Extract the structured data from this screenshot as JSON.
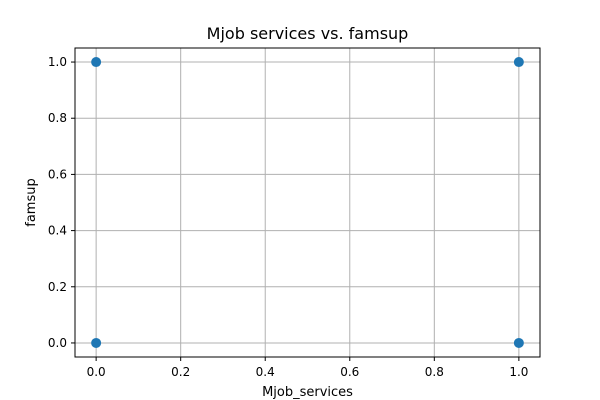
{
  "chart_data": {
    "type": "scatter",
    "title": "Mjob services vs. famsup",
    "xlabel": "Mjob_services",
    "ylabel": "famsup",
    "x": [
      0.0,
      0.0,
      1.0,
      1.0
    ],
    "y": [
      0.0,
      1.0,
      0.0,
      1.0
    ],
    "xlim": [
      -0.05,
      1.05
    ],
    "ylim": [
      -0.05,
      1.05
    ],
    "xticks": [
      "0.0",
      "0.2",
      "0.4",
      "0.6",
      "0.8",
      "1.0"
    ],
    "yticks": [
      "0.0",
      "0.2",
      "0.4",
      "0.6",
      "0.8",
      "1.0"
    ],
    "grid": true,
    "point_color": "#1f77b4"
  }
}
